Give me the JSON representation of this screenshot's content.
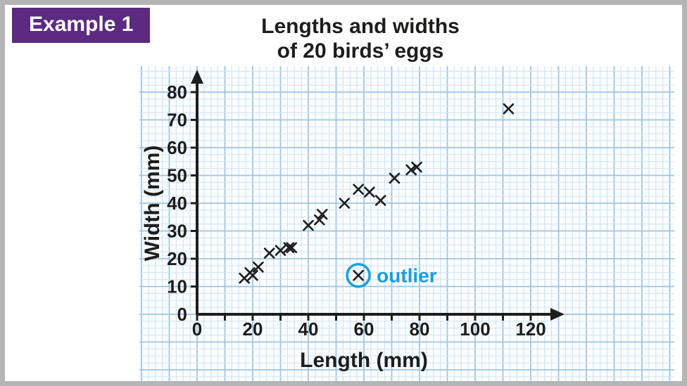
{
  "badge": {
    "label": "Example 1"
  },
  "title": {
    "line1": "Lengths and widths",
    "line2": "of 20 birds’ eggs"
  },
  "chart_data": {
    "type": "scatter",
    "title": "Lengths and widths of 20 birds’ eggs",
    "xlabel": "Length (mm)",
    "ylabel": "Width (mm)",
    "xlim": [
      0,
      130
    ],
    "ylim": [
      0,
      86
    ],
    "x_ticks": [
      0,
      20,
      40,
      60,
      80,
      100,
      120
    ],
    "y_ticks": [
      0,
      10,
      20,
      30,
      40,
      50,
      60,
      70,
      80
    ],
    "tick_mark_step": 10,
    "grid": {
      "minor_step": 2.5,
      "major_step": 10,
      "on": true
    },
    "marker": "x",
    "legend": "none",
    "points": [
      [
        17,
        13
      ],
      [
        19,
        15
      ],
      [
        20,
        14
      ],
      [
        22,
        17
      ],
      [
        26,
        22
      ],
      [
        30,
        23
      ],
      [
        33,
        24
      ],
      [
        34,
        24
      ],
      [
        40,
        32
      ],
      [
        44,
        34
      ],
      [
        45,
        36
      ],
      [
        53,
        40
      ],
      [
        58,
        45
      ],
      [
        62,
        44
      ],
      [
        66,
        41
      ],
      [
        71,
        49
      ],
      [
        77,
        52
      ],
      [
        79,
        53
      ],
      [
        112,
        74
      ]
    ],
    "outlier": {
      "x": 58,
      "y": 14,
      "label": "outlier"
    }
  },
  "colors": {
    "badge_bg": "#5b2b82",
    "badge_text": "#ffffff",
    "title_text": "#1d1d1b",
    "axis": "#1d1d1b",
    "marker": "#1d1d1b",
    "outlier_accent": "#199fdd",
    "grid_minor": "#cfe3f3",
    "grid_major": "#9dc6e7",
    "paper_bg": "#fbfdff",
    "frame": "#b5b5b5",
    "page_bg": "#ffffff"
  }
}
